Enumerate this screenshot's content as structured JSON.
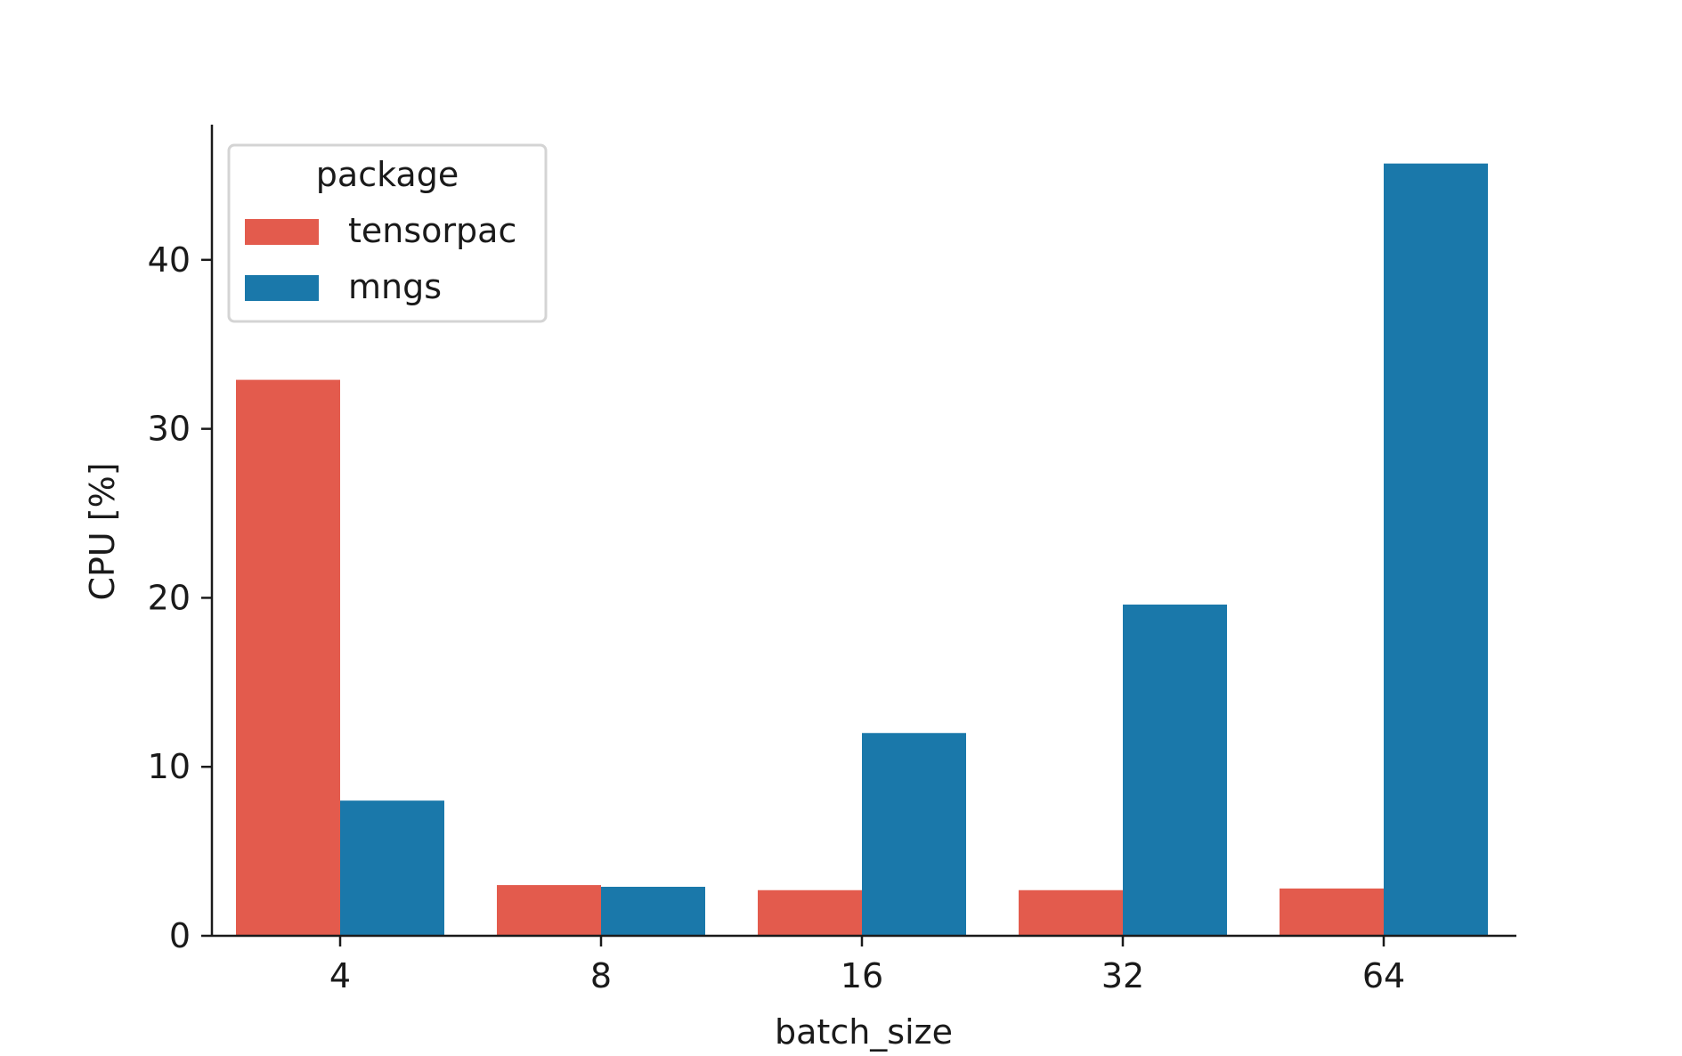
{
  "chart_data": {
    "type": "bar",
    "title": "",
    "xlabel": "batch_size",
    "ylabel": "CPU [%]",
    "categories": [
      "4",
      "8",
      "16",
      "32",
      "64"
    ],
    "series": [
      {
        "name": "tensorpac",
        "color": "#e35b4d",
        "values": [
          32.9,
          3.0,
          2.7,
          2.7,
          2.8
        ]
      },
      {
        "name": "mngs",
        "color": "#1a78aa",
        "values": [
          8.0,
          2.9,
          12.0,
          19.6,
          45.7
        ]
      }
    ],
    "ylim": [
      0,
      48
    ],
    "yticks": [
      0,
      10,
      20,
      30,
      40
    ],
    "grid": false,
    "legend": {
      "title": "package",
      "placement": "top-left"
    }
  }
}
